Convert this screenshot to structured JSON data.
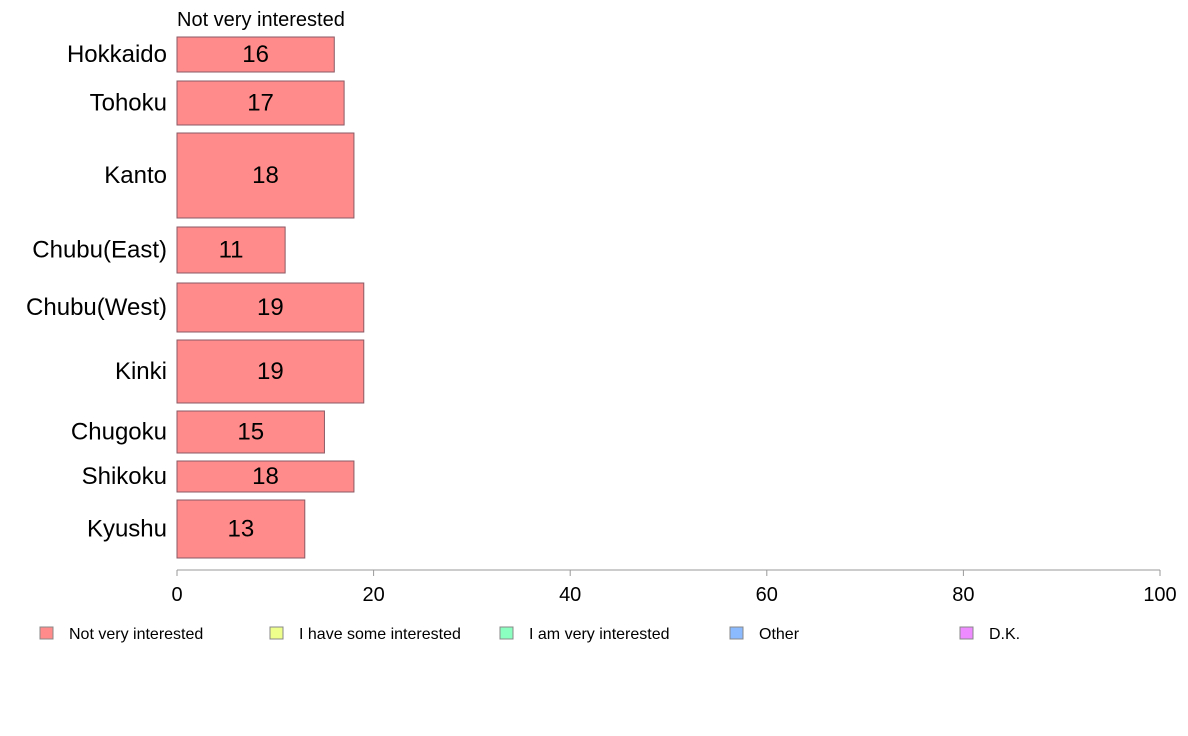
{
  "chart_data": {
    "type": "bar",
    "orientation": "horizontal",
    "stacked": true,
    "categories": [
      "Hokkaido",
      "Tohoku",
      "Kanto",
      "Chubu(East)",
      "Chubu(West)",
      "Kinki",
      "Chugoku",
      "Shikoku",
      "Kyushu"
    ],
    "series": [
      {
        "name": "Not very interested",
        "values": [
          16,
          17,
          18,
          11,
          19,
          19,
          15,
          18,
          13
        ],
        "color": "#ff8b8b"
      }
    ],
    "series_title": "Not very interested",
    "xlim": [
      0,
      100
    ],
    "xticks": [
      0,
      20,
      40,
      60,
      80,
      100
    ],
    "legend": {
      "placement": "bottom",
      "entries": [
        {
          "label": "Not very interested",
          "color": "#ff8b8b"
        },
        {
          "label": "I have some interested",
          "color": "#eeff8b"
        },
        {
          "label": "I am very interested",
          "color": "#8bffc0"
        },
        {
          "label": "Other",
          "color": "#8bbaff"
        },
        {
          "label": "D.K.",
          "color": "#ee8bff"
        }
      ]
    },
    "grid": false
  }
}
